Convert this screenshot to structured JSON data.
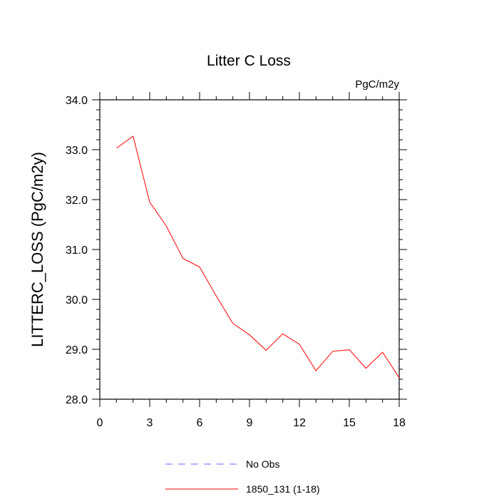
{
  "chart_data": {
    "type": "line",
    "title": "Litter C Loss",
    "units_label": "PgC/m2y",
    "ylabel": "LITTERC_LOSS  (PgC/m2y)",
    "xlabel": "",
    "xlim": [
      0,
      18
    ],
    "ylim": [
      28.0,
      34.0
    ],
    "xticks": [
      0,
      3,
      6,
      9,
      12,
      15,
      18
    ],
    "xtick_labels": [
      "0",
      "3",
      "6",
      "9",
      "12",
      "15",
      "18"
    ],
    "yticks": [
      28.0,
      29.0,
      30.0,
      31.0,
      32.0,
      33.0,
      34.0
    ],
    "ytick_labels": [
      "28.0",
      "29.0",
      "30.0",
      "31.0",
      "32.0",
      "33.0",
      "34.0"
    ],
    "grid": false,
    "legend_position": "bottom-center",
    "series": [
      {
        "name": "No Obs",
        "color": "#6a6aff",
        "dash": "dashed",
        "x": [],
        "y": []
      },
      {
        "name": "1850_131 (1-18)",
        "color": "#ff0000",
        "dash": "solid",
        "x": [
          1,
          2,
          3,
          4,
          5,
          6,
          7,
          8,
          9,
          10,
          11,
          12,
          13,
          14,
          15,
          16,
          17,
          18
        ],
        "y": [
          33.03,
          33.27,
          31.95,
          31.47,
          30.82,
          30.65,
          30.07,
          29.52,
          29.29,
          28.98,
          29.31,
          29.1,
          28.57,
          28.96,
          28.99,
          28.62,
          28.94,
          28.43
        ]
      }
    ]
  }
}
